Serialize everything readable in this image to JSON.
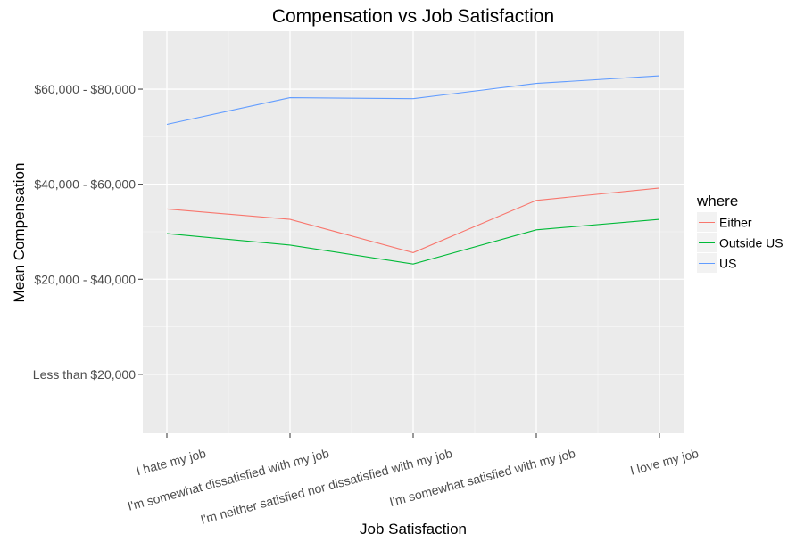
{
  "chart_data": {
    "type": "line",
    "title": "Compensation vs Job Satisfaction",
    "xlabel": "Job Satisfaction",
    "ylabel": "Mean Compensation",
    "categories": [
      "I hate my job",
      "I'm somewhat dissatisfied with my job",
      "I'm neither satisfied nor dissatisfied with my job",
      "I'm somewhat satisfied with my job",
      "I love my job"
    ],
    "y_tick_labels": [
      "Less than $20,000",
      "$20,000 - $40,000",
      "$40,000 - $60,000",
      "$60,000 - $80,000"
    ],
    "y_tick_values": [
      1,
      2,
      3,
      4
    ],
    "ylim": [
      0.38,
      4.61
    ],
    "grid": true,
    "legend": {
      "title": "where",
      "position": "right"
    },
    "series": [
      {
        "name": "Either",
        "color": "#F8766D",
        "values": [
          2.74,
          2.63,
          2.28,
          2.83,
          2.96
        ]
      },
      {
        "name": "Outside US",
        "color": "#00BA38",
        "values": [
          2.48,
          2.36,
          2.16,
          2.52,
          2.63
        ]
      },
      {
        "name": "US",
        "color": "#619CFF",
        "values": [
          3.63,
          3.91,
          3.9,
          4.06,
          4.14
        ]
      }
    ]
  }
}
